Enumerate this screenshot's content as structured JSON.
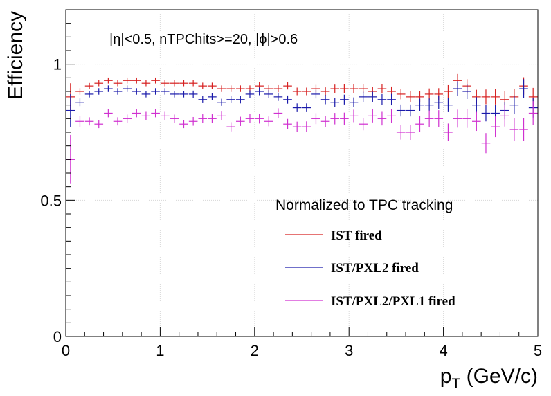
{
  "chart_data": {
    "type": "scatter",
    "title": "",
    "annotation": "|η|<0.5, nTPChits>=20, |ϕ|>0.6",
    "xlabel_main": "p",
    "xlabel_sub": "T",
    "xlabel_unit": " (GeV/c)",
    "ylabel": "Efficiency",
    "xlim": [
      0,
      5
    ],
    "ylim": [
      0,
      1.2
    ],
    "x_ticks": [
      "0",
      "1",
      "2",
      "3",
      "4",
      "5"
    ],
    "y_ticks": [
      {
        "v": 0,
        "label": "0"
      },
      {
        "v": 0.5,
        "label": "0.5"
      },
      {
        "v": 1,
        "label": "1"
      }
    ],
    "grid": true,
    "legend_title": "Normalized to TPC tracking",
    "legend_position": "center-right",
    "x_bin_width": 0.1,
    "x": [
      0.05,
      0.15,
      0.25,
      0.35,
      0.45,
      0.55,
      0.65,
      0.75,
      0.85,
      0.95,
      1.05,
      1.15,
      1.25,
      1.35,
      1.45,
      1.55,
      1.65,
      1.75,
      1.85,
      1.95,
      2.05,
      2.15,
      2.25,
      2.35,
      2.45,
      2.55,
      2.65,
      2.75,
      2.85,
      2.95,
      3.05,
      3.15,
      3.25,
      3.35,
      3.45,
      3.55,
      3.65,
      3.75,
      3.85,
      3.95,
      4.05,
      4.15,
      4.25,
      4.35,
      4.45,
      4.55,
      4.65,
      4.75,
      4.85,
      4.95
    ],
    "series": [
      {
        "name": "IST fired",
        "color": "#d62020",
        "values": [
          0.88,
          0.9,
          0.92,
          0.93,
          0.94,
          0.93,
          0.94,
          0.94,
          0.93,
          0.94,
          0.93,
          0.93,
          0.93,
          0.93,
          0.92,
          0.92,
          0.91,
          0.91,
          0.91,
          0.91,
          0.92,
          0.91,
          0.91,
          0.92,
          0.9,
          0.9,
          0.91,
          0.9,
          0.91,
          0.91,
          0.91,
          0.91,
          0.9,
          0.91,
          0.9,
          0.89,
          0.88,
          0.88,
          0.89,
          0.89,
          0.9,
          0.94,
          0.92,
          0.88,
          0.88,
          0.88,
          0.87,
          0.88,
          0.92,
          0.88
        ],
        "errors": [
          0.05,
          0.012,
          0.011,
          0.011,
          0.011,
          0.011,
          0.011,
          0.011,
          0.011,
          0.011,
          0.011,
          0.011,
          0.011,
          0.011,
          0.012,
          0.012,
          0.012,
          0.012,
          0.012,
          0.012,
          0.013,
          0.013,
          0.013,
          0.013,
          0.014,
          0.014,
          0.014,
          0.015,
          0.015,
          0.016,
          0.016,
          0.017,
          0.017,
          0.018,
          0.018,
          0.019,
          0.02,
          0.02,
          0.021,
          0.022,
          0.023,
          0.024,
          0.025,
          0.026,
          0.027,
          0.028,
          0.03,
          0.03,
          0.032,
          0.033
        ]
      },
      {
        "name": "IST/PXL2 fired",
        "color": "#1a1aaa",
        "values": [
          0.83,
          0.86,
          0.89,
          0.9,
          0.91,
          0.9,
          0.91,
          0.9,
          0.89,
          0.9,
          0.9,
          0.89,
          0.89,
          0.89,
          0.87,
          0.88,
          0.86,
          0.87,
          0.87,
          0.89,
          0.9,
          0.89,
          0.88,
          0.87,
          0.84,
          0.84,
          0.89,
          0.87,
          0.86,
          0.87,
          0.86,
          0.88,
          0.88,
          0.87,
          0.87,
          0.83,
          0.83,
          0.85,
          0.85,
          0.86,
          0.85,
          0.91,
          0.9,
          0.85,
          0.82,
          0.82,
          0.83,
          0.85,
          0.91,
          0.84
        ],
        "errors": [
          0.06,
          0.014,
          0.012,
          0.012,
          0.012,
          0.012,
          0.012,
          0.012,
          0.012,
          0.012,
          0.012,
          0.012,
          0.012,
          0.013,
          0.013,
          0.013,
          0.013,
          0.013,
          0.014,
          0.014,
          0.014,
          0.015,
          0.015,
          0.015,
          0.016,
          0.016,
          0.016,
          0.017,
          0.017,
          0.018,
          0.018,
          0.019,
          0.019,
          0.02,
          0.021,
          0.022,
          0.022,
          0.023,
          0.024,
          0.025,
          0.026,
          0.027,
          0.028,
          0.029,
          0.03,
          0.031,
          0.032,
          0.034,
          0.035,
          0.036
        ]
      },
      {
        "name": "IST/PXL2/PXL1 fired",
        "color": "#d030d0",
        "values": [
          0.65,
          0.79,
          0.79,
          0.78,
          0.82,
          0.79,
          0.8,
          0.82,
          0.81,
          0.82,
          0.81,
          0.8,
          0.78,
          0.79,
          0.8,
          0.8,
          0.81,
          0.77,
          0.79,
          0.8,
          0.8,
          0.79,
          0.82,
          0.78,
          0.77,
          0.77,
          0.8,
          0.79,
          0.8,
          0.8,
          0.81,
          0.78,
          0.81,
          0.8,
          0.81,
          0.75,
          0.75,
          0.78,
          0.8,
          0.8,
          0.75,
          0.8,
          0.8,
          0.79,
          0.71,
          0.77,
          0.81,
          0.76,
          0.76,
          0.82
        ],
        "errors": [
          0.09,
          0.02,
          0.015,
          0.015,
          0.015,
          0.015,
          0.015,
          0.015,
          0.015,
          0.015,
          0.015,
          0.015,
          0.015,
          0.016,
          0.016,
          0.016,
          0.016,
          0.017,
          0.017,
          0.017,
          0.018,
          0.018,
          0.018,
          0.019,
          0.019,
          0.02,
          0.02,
          0.021,
          0.021,
          0.022,
          0.023,
          0.023,
          0.024,
          0.025,
          0.026,
          0.027,
          0.028,
          0.029,
          0.03,
          0.031,
          0.032,
          0.033,
          0.034,
          0.035,
          0.037,
          0.038,
          0.039,
          0.041,
          0.042,
          0.044
        ]
      }
    ]
  }
}
